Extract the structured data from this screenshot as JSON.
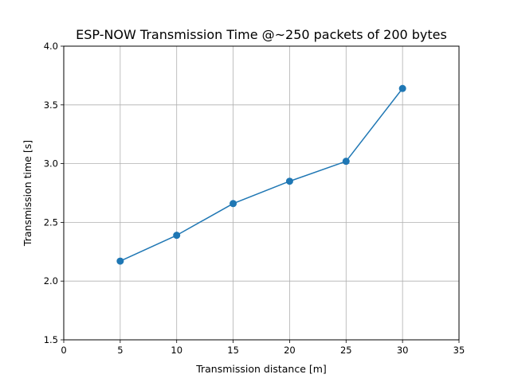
{
  "chart_data": {
    "type": "line",
    "title": "ESP-NOW Transmission Time @~250 packets of 200 bytes",
    "xlabel": "Transmission distance [m]",
    "ylabel": "Transmission time [s]",
    "xlim": [
      0,
      35
    ],
    "ylim": [
      1.5,
      4.0
    ],
    "xticks": [
      "0",
      "5",
      "10",
      "15",
      "20",
      "25",
      "30",
      "35"
    ],
    "yticks": [
      "1.5",
      "2.0",
      "2.5",
      "3.0",
      "3.5",
      "4.0"
    ],
    "grid": true,
    "marker": "circle",
    "series": [
      {
        "x": [
          5,
          10,
          15,
          20,
          25,
          30
        ],
        "y": [
          2.17,
          2.39,
          2.66,
          2.85,
          3.02,
          3.64
        ],
        "color": "#1f77b4"
      }
    ]
  }
}
